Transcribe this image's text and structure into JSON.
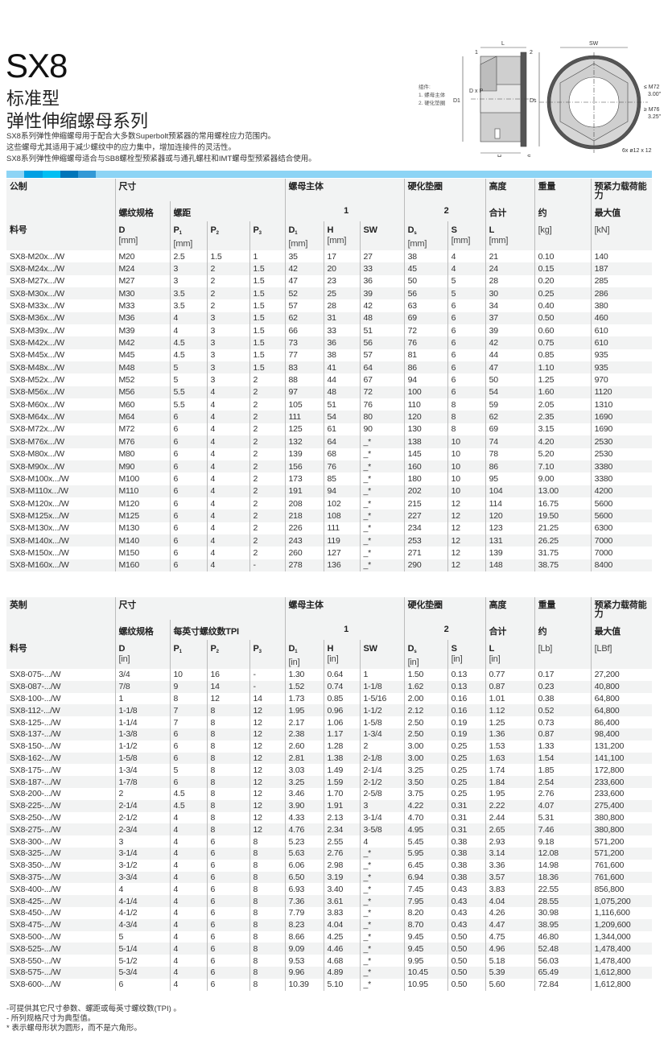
{
  "header": {
    "title": "SX8",
    "subtitle1": "标准型",
    "subtitle2": "弹性伸缩螺母系列",
    "description": [
      "SX8系列弹性伸缩螺母用于配合大多数Superbolt预紧器的常用螺栓应力范围内。",
      "这些螺母尤其适用于减少螺纹中的应力集中，增加连接件的灵活性。",
      "SX8系列弹性伸缩螺母适合与SB8螺栓型预紧器或与通孔螺柱和IMT螺母型预紧器结合使用。"
    ]
  },
  "diagram": {
    "legend": [
      "组件:",
      "1. 螺母主体",
      "2. 硬化垫圈"
    ],
    "labels": {
      "L": "L",
      "SW": "SW",
      "one": "1",
      "two": "2",
      "D1": "D1",
      "DxP": "D x P",
      "Ds": "Ds",
      "H": "H",
      "S": "S",
      "le": "≤ M72",
      "le_in": "3.00\"",
      "ge": "≥ M76",
      "ge_in": "3.25\"",
      "holes": "6x  ø12 x 12"
    }
  },
  "colors": {
    "bar": "#8dd4f5",
    "seg": [
      "#8dd4f5",
      "#00a0e3",
      "#00bff3",
      "#0075b9",
      "#3399d6"
    ]
  },
  "metric": {
    "h1": [
      "公制",
      "尺寸",
      "螺母主体",
      "硬化垫圈",
      "高度",
      "重量",
      "预紧力载荷能力"
    ],
    "h2": [
      "螺纹规格",
      "螺距",
      "1",
      "2",
      "合计",
      "约",
      "最大值"
    ],
    "h3": [
      {
        "s": "料号"
      },
      {
        "s": "D",
        "u": "[mm]"
      },
      {
        "s": "P",
        "b": "1",
        "u": "[mm]"
      },
      {
        "s": "P",
        "b": "2"
      },
      {
        "s": "P",
        "b": "3"
      },
      {
        "s": "D",
        "b": "1",
        "u": "[mm]"
      },
      {
        "s": "H",
        "u": "[mm]"
      },
      {
        "s": "SW"
      },
      {
        "s": "D",
        "b": "s",
        "u": "[mm]"
      },
      {
        "s": "S",
        "u": "[mm]"
      },
      {
        "s": "L",
        "u": "[mm]"
      },
      {
        "s": "",
        "u": "[kg]"
      },
      {
        "s": "",
        "u": "[kN]"
      }
    ],
    "rows": [
      [
        "SX8-M20x.../W",
        "M20",
        "2.5",
        "1.5",
        "1",
        "35",
        "17",
        "27",
        "38",
        "4",
        "21",
        "0.10",
        "140"
      ],
      [
        "SX8-M24x.../W",
        "M24",
        "3",
        "2",
        "1.5",
        "42",
        "20",
        "33",
        "45",
        "4",
        "24",
        "0.15",
        "187"
      ],
      [
        "SX8-M27x.../W",
        "M27",
        "3",
        "2",
        "1.5",
        "47",
        "23",
        "36",
        "50",
        "5",
        "28",
        "0.20",
        "285"
      ],
      [
        "SX8-M30x.../W",
        "M30",
        "3.5",
        "2",
        "1.5",
        "52",
        "25",
        "39",
        "56",
        "5",
        "30",
        "0.25",
        "286"
      ],
      [
        "SX8-M33x.../W",
        "M33",
        "3.5",
        "2",
        "1.5",
        "57",
        "28",
        "42",
        "63",
        "6",
        "34",
        "0.40",
        "380"
      ],
      [
        "SX8-M36x.../W",
        "M36",
        "4",
        "3",
        "1.5",
        "62",
        "31",
        "48",
        "69",
        "6",
        "37",
        "0.50",
        "460"
      ],
      [
        "SX8-M39x.../W",
        "M39",
        "4",
        "3",
        "1.5",
        "66",
        "33",
        "51",
        "72",
        "6",
        "39",
        "0.60",
        "610"
      ],
      [
        "SX8-M42x.../W",
        "M42",
        "4.5",
        "3",
        "1.5",
        "73",
        "36",
        "56",
        "76",
        "6",
        "42",
        "0.75",
        "610"
      ],
      [
        "SX8-M45x.../W",
        "M45",
        "4.5",
        "3",
        "1.5",
        "77",
        "38",
        "57",
        "81",
        "6",
        "44",
        "0.85",
        "935"
      ],
      [
        "SX8-M48x.../W",
        "M48",
        "5",
        "3",
        "1.5",
        "83",
        "41",
        "64",
        "86",
        "6",
        "47",
        "1.10",
        "935"
      ],
      [
        "SX8-M52x.../W",
        "M52",
        "5",
        "3",
        "2",
        "88",
        "44",
        "67",
        "94",
        "6",
        "50",
        "1.25",
        "970"
      ],
      [
        "SX8-M56x.../W",
        "M56",
        "5.5",
        "4",
        "2",
        "97",
        "48",
        "72",
        "100",
        "6",
        "54",
        "1.60",
        "1120"
      ],
      [
        "SX8-M60x.../W",
        "M60",
        "5.5",
        "4",
        "2",
        "105",
        "51",
        "76",
        "110",
        "8",
        "59",
        "2.05",
        "1310"
      ],
      [
        "SX8-M64x.../W",
        "M64",
        "6",
        "4",
        "2",
        "111",
        "54",
        "80",
        "120",
        "8",
        "62",
        "2.35",
        "1690"
      ],
      [
        "SX8-M72x.../W",
        "M72",
        "6",
        "4",
        "2",
        "125",
        "61",
        "90",
        "130",
        "8",
        "69",
        "3.15",
        "1690"
      ],
      [
        "SX8-M76x.../W",
        "M76",
        "6",
        "4",
        "2",
        "132",
        "64",
        "_*",
        "138",
        "10",
        "74",
        "4.20",
        "2530"
      ],
      [
        "SX8-M80x.../W",
        "M80",
        "6",
        "4",
        "2",
        "139",
        "68",
        "_*",
        "145",
        "10",
        "78",
        "5.20",
        "2530"
      ],
      [
        "SX8-M90x.../W",
        "M90",
        "6",
        "4",
        "2",
        "156",
        "76",
        "_*",
        "160",
        "10",
        "86",
        "7.10",
        "3380"
      ],
      [
        "SX8-M100x.../W",
        "M100",
        "6",
        "4",
        "2",
        "173",
        "85",
        "_*",
        "180",
        "10",
        "95",
        "9.00",
        "3380"
      ],
      [
        "SX8-M110x.../W",
        "M110",
        "6",
        "4",
        "2",
        "191",
        "94",
        "_*",
        "202",
        "10",
        "104",
        "13.00",
        "4200"
      ],
      [
        "SX8-M120x.../W",
        "M120",
        "6",
        "4",
        "2",
        "208",
        "102",
        "_*",
        "215",
        "12",
        "114",
        "16.75",
        "5600"
      ],
      [
        "SX8-M125x.../W",
        "M125",
        "6",
        "4",
        "2",
        "218",
        "108",
        "_*",
        "227",
        "12",
        "120",
        "19.50",
        "5600"
      ],
      [
        "SX8-M130x.../W",
        "M130",
        "6",
        "4",
        "2",
        "226",
        "111",
        "_*",
        "234",
        "12",
        "123",
        "21.25",
        "6300"
      ],
      [
        "SX8-M140x.../W",
        "M140",
        "6",
        "4",
        "2",
        "243",
        "119",
        "_*",
        "253",
        "12",
        "131",
        "26.25",
        "7000"
      ],
      [
        "SX8-M150x.../W",
        "M150",
        "6",
        "4",
        "2",
        "260",
        "127",
        "_*",
        "271",
        "12",
        "139",
        "31.75",
        "7000"
      ],
      [
        "SX8-M160x.../W",
        "M160",
        "6",
        "4",
        "-",
        "278",
        "136",
        "_*",
        "290",
        "12",
        "148",
        "38.75",
        "8400"
      ]
    ]
  },
  "imperial": {
    "h1": [
      "英制",
      "尺寸",
      "螺母主体",
      "硬化垫圈",
      "高度",
      "重量",
      "预紧力载荷能力"
    ],
    "h2": [
      "螺纹规格",
      "每英寸螺纹数TPI",
      "1",
      "2",
      "合计",
      "约",
      "最大值"
    ],
    "h3": [
      {
        "s": "料号"
      },
      {
        "s": "D",
        "u": "[in]"
      },
      {
        "s": "P",
        "b": "1"
      },
      {
        "s": "P",
        "b": "2"
      },
      {
        "s": "P",
        "b": "3"
      },
      {
        "s": "D",
        "b": "1",
        "u": "[in]"
      },
      {
        "s": "H",
        "u": "[in]"
      },
      {
        "s": "SW"
      },
      {
        "s": "D",
        "b": "s",
        "u": "[in]"
      },
      {
        "s": "S",
        "u": "[in]"
      },
      {
        "s": "L",
        "u": "[in]"
      },
      {
        "s": "",
        "u": "[Lb]"
      },
      {
        "s": "",
        "u": "[LBf]"
      }
    ],
    "rows": [
      [
        "SX8-075-.../W",
        "3/4",
        "10",
        "16",
        "-",
        "1.30",
        "0.64",
        "1",
        "1.50",
        "0.13",
        "0.77",
        "0.17",
        "27,200"
      ],
      [
        "SX8-087-.../W",
        "7/8",
        "9",
        "14",
        "-",
        "1.52",
        "0.74",
        "1-1/8",
        "1.62",
        "0.13",
        "0.87",
        "0.23",
        "40,800"
      ],
      [
        "SX8-100-.../W",
        "1",
        "8",
        "12",
        "14",
        "1.73",
        "0.85",
        "1-5/16",
        "2.00",
        "0.16",
        "1.01",
        "0.38",
        "64,800"
      ],
      [
        "SX8-112-.../W",
        "1-1/8",
        "7",
        "8",
        "12",
        "1.95",
        "0.96",
        "1-1/2",
        "2.12",
        "0.16",
        "1.12",
        "0.52",
        "64,800"
      ],
      [
        "SX8-125-.../W",
        "1-1/4",
        "7",
        "8",
        "12",
        "2.17",
        "1.06",
        "1-5/8",
        "2.50",
        "0.19",
        "1.25",
        "0.73",
        "86,400"
      ],
      [
        "SX8-137-.../W",
        "1-3/8",
        "6",
        "8",
        "12",
        "2.38",
        "1.17",
        "1-3/4",
        "2.50",
        "0.19",
        "1.36",
        "0.87",
        "98,400"
      ],
      [
        "SX8-150-.../W",
        "1-1/2",
        "6",
        "8",
        "12",
        "2.60",
        "1.28",
        "2",
        "3.00",
        "0.25",
        "1.53",
        "1.33",
        "131,200"
      ],
      [
        "SX8-162-.../W",
        "1-5/8",
        "6",
        "8",
        "12",
        "2.81",
        "1.38",
        "2-1/8",
        "3.00",
        "0.25",
        "1.63",
        "1.54",
        "141,100"
      ],
      [
        "SX8-175-.../W",
        "1-3/4",
        "5",
        "8",
        "12",
        "3.03",
        "1.49",
        "2-1/4",
        "3.25",
        "0.25",
        "1.74",
        "1.85",
        "172,800"
      ],
      [
        "SX8-187-.../W",
        "1-7/8",
        "6",
        "8",
        "12",
        "3.25",
        "1.59",
        "2-1/2",
        "3.50",
        "0.25",
        "1.84",
        "2.54",
        "233,600"
      ],
      [
        "SX8-200-.../W",
        "2",
        "4.5",
        "8",
        "12",
        "3.46",
        "1.70",
        "2-5/8",
        "3.75",
        "0.25",
        "1.95",
        "2.76",
        "233,600"
      ],
      [
        "SX8-225-.../W",
        "2-1/4",
        "4.5",
        "8",
        "12",
        "3.90",
        "1.91",
        "3",
        "4.22",
        "0.31",
        "2.22",
        "4.07",
        "275,400"
      ],
      [
        "SX8-250-.../W",
        "2-1/2",
        "4",
        "8",
        "12",
        "4.33",
        "2.13",
        "3-1/4",
        "4.70",
        "0.31",
        "2.44",
        "5.31",
        "380,800"
      ],
      [
        "SX8-275-.../W",
        "2-3/4",
        "4",
        "8",
        "12",
        "4.76",
        "2.34",
        "3-5/8",
        "4.95",
        "0.31",
        "2.65",
        "7.46",
        "380,800"
      ],
      [
        "SX8-300-.../W",
        "3",
        "4",
        "6",
        "8",
        "5.23",
        "2.55",
        "4",
        "5.45",
        "0.38",
        "2.93",
        "9.18",
        "571,200"
      ],
      [
        "SX8-325-.../W",
        "3-1/4",
        "4",
        "6",
        "8",
        "5.63",
        "2.76",
        "_*",
        "5.95",
        "0.38",
        "3.14",
        "12.08",
        "571,200"
      ],
      [
        "SX8-350-.../W",
        "3-1/2",
        "4",
        "6",
        "8",
        "6.06",
        "2.98",
        "_*",
        "6.45",
        "0.38",
        "3.36",
        "14.98",
        "761,600"
      ],
      [
        "SX8-375-.../W",
        "3-3/4",
        "4",
        "6",
        "8",
        "6.50",
        "3.19",
        "_*",
        "6.94",
        "0.38",
        "3.57",
        "18.36",
        "761,600"
      ],
      [
        "SX8-400-.../W",
        "4",
        "4",
        "6",
        "8",
        "6.93",
        "3.40",
        "_*",
        "7.45",
        "0.43",
        "3.83",
        "22.55",
        "856,800"
      ],
      [
        "SX8-425-.../W",
        "4-1/4",
        "4",
        "6",
        "8",
        "7.36",
        "3.61",
        "_*",
        "7.95",
        "0.43",
        "4.04",
        "28.55",
        "1,075,200"
      ],
      [
        "SX8-450-.../W",
        "4-1/2",
        "4",
        "6",
        "8",
        "7.79",
        "3.83",
        "_*",
        "8.20",
        "0.43",
        "4.26",
        "30.98",
        "1,116,600"
      ],
      [
        "SX8-475-.../W",
        "4-3/4",
        "4",
        "6",
        "8",
        "8.23",
        "4.04",
        "_*",
        "8.70",
        "0.43",
        "4.47",
        "38.95",
        "1,209,600"
      ],
      [
        "SX8-500-.../W",
        "5",
        "4",
        "6",
        "8",
        "8.66",
        "4.25",
        "_*",
        "9.45",
        "0.50",
        "4.75",
        "46.80",
        "1,344,000"
      ],
      [
        "SX8-525-.../W",
        "5-1/4",
        "4",
        "6",
        "8",
        "9.09",
        "4.46",
        "_*",
        "9.45",
        "0.50",
        "4.96",
        "52.48",
        "1,478,400"
      ],
      [
        "SX8-550-.../W",
        "5-1/2",
        "4",
        "6",
        "8",
        "9.53",
        "4.68",
        "_*",
        "9.95",
        "0.50",
        "5.18",
        "56.03",
        "1,478,400"
      ],
      [
        "SX8-575-.../W",
        "5-3/4",
        "4",
        "6",
        "8",
        "9.96",
        "4.89",
        "_*",
        "10.45",
        "0.50",
        "5.39",
        "65.49",
        "1,612,800"
      ],
      [
        "SX8-600-.../W",
        "6",
        "4",
        "6",
        "8",
        "10.39",
        "5.10",
        "_*",
        "10.95",
        "0.50",
        "5.60",
        "72.84",
        "1,612,800"
      ]
    ]
  },
  "notes": [
    "-可提供其它尺寸参数、螺距或每英寸螺纹数(TPI) 。",
    "- 所列规格尺寸为典型值。",
    "* 表示螺母形状为圆形，而不是六角形。"
  ]
}
